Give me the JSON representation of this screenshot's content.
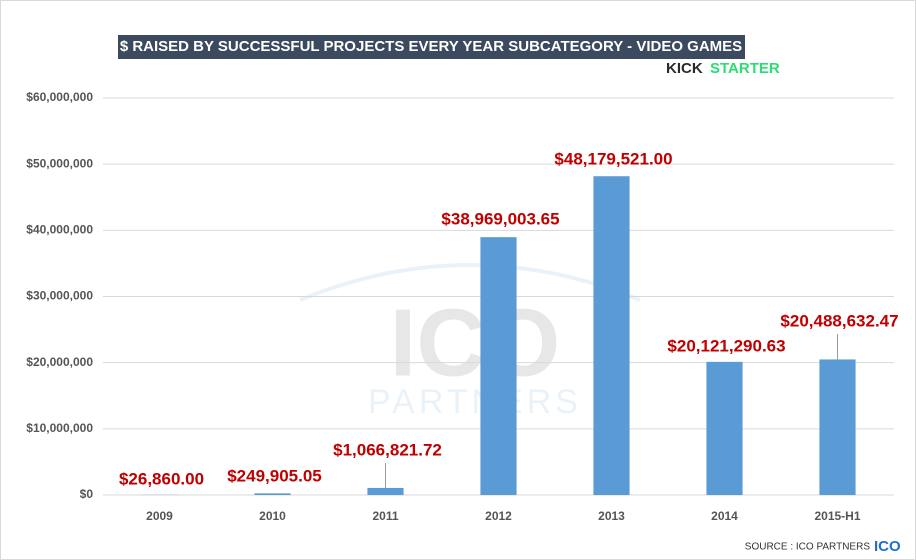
{
  "chart_data": {
    "type": "bar",
    "title": "$ RAISED BY SUCCESSFUL PROJECTS EVERY YEAR SUBCATEGORY - VIDEO GAMES",
    "brand": {
      "kick": "KICK",
      "starter": "STARTER"
    },
    "watermark": {
      "top": "ICO",
      "bottom": "PARTNERS"
    },
    "source": "SOURCE : ICO PARTNERS",
    "source_logo": "ICO",
    "categories": [
      "2009",
      "2010",
      "2011",
      "2012",
      "2013",
      "2014",
      "2015-H1"
    ],
    "values": [
      26860,
      249905.05,
      1066821.72,
      38969003.65,
      48179521,
      20121290.63,
      20488632.47
    ],
    "value_labels": [
      "$26,860.00",
      "$249,905.05",
      "$1,066,821.72",
      "$38,969,003.65",
      "$48,179,521.00",
      "$20,121,290.63",
      "$20,488,632.47"
    ],
    "color": "#5b9bd5",
    "ylim": [
      0,
      60000000
    ],
    "yticks": [
      {
        "value": 0,
        "label": "$0"
      },
      {
        "value": 10000000,
        "label": "$10,000,000"
      },
      {
        "value": 20000000,
        "label": "$20,000,000"
      },
      {
        "value": 30000000,
        "label": "$30,000,000"
      },
      {
        "value": 40000000,
        "label": "$40,000,000"
      },
      {
        "value": 50000000,
        "label": "$50,000,000"
      },
      {
        "value": 60000000,
        "label": "$60,000,000"
      }
    ],
    "grid": true
  }
}
